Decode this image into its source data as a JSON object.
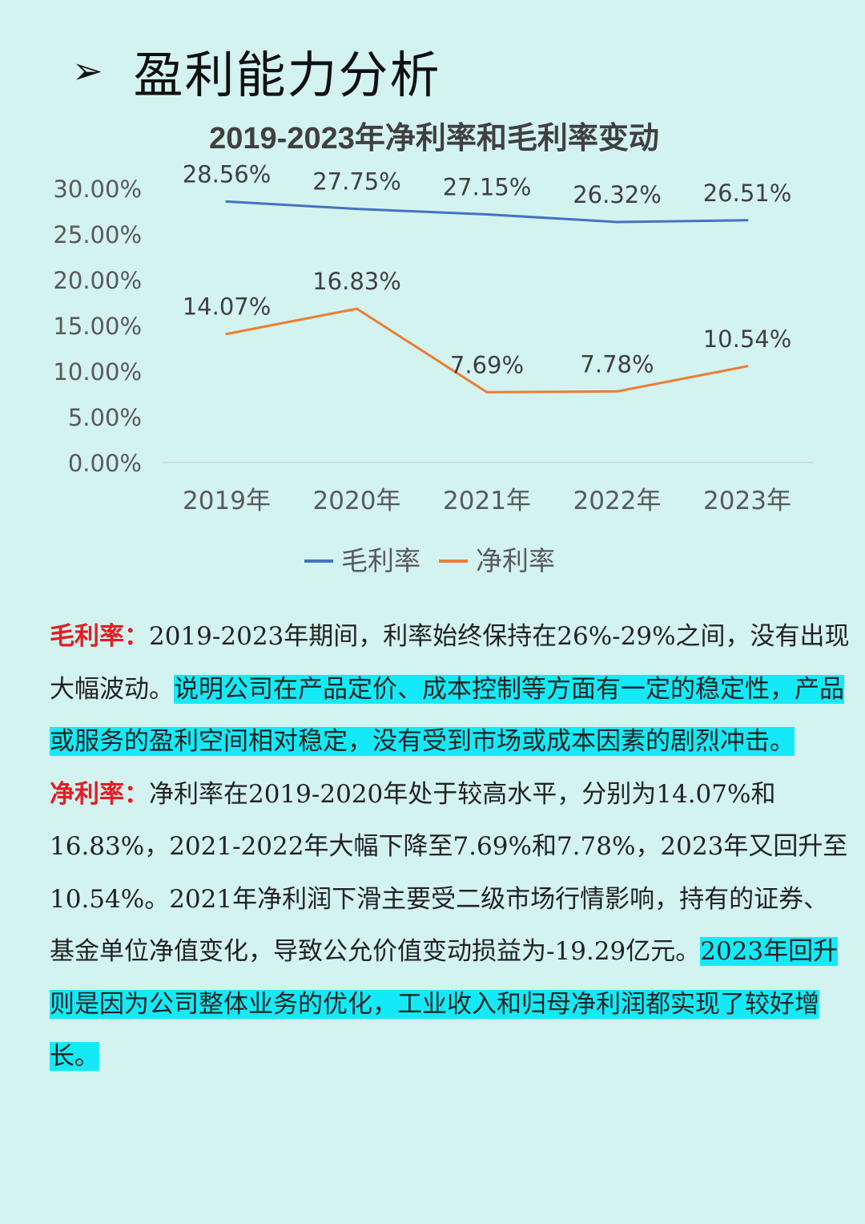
{
  "header": {
    "marker": "➢",
    "title": "盈利能力分析"
  },
  "chart_data": {
    "type": "line",
    "title": "2019-2023年净利率和毛利率变动",
    "categories": [
      "2019年",
      "2020年",
      "2021年",
      "2022年",
      "2023年"
    ],
    "yticks": [
      "0.00%",
      "5.00%",
      "10.00%",
      "15.00%",
      "20.00%",
      "25.00%",
      "30.00%"
    ],
    "ylim": [
      0,
      30
    ],
    "grid": false,
    "legend": "bottom",
    "series": [
      {
        "name": "毛利率",
        "color": "#4472c4",
        "values": [
          28.56,
          27.75,
          27.15,
          26.32,
          26.51
        ],
        "labels": [
          "28.56%",
          "27.75%",
          "27.15%",
          "26.32%",
          "26.51%"
        ]
      },
      {
        "name": "净利率",
        "color": "#ed7d31",
        "values": [
          14.07,
          16.83,
          7.69,
          7.78,
          10.54
        ],
        "labels": [
          "14.07%",
          "16.83%",
          "7.69%",
          "7.78%",
          "10.54%"
        ]
      }
    ]
  },
  "body": {
    "gross": {
      "lead": "毛利率：",
      "text": "2019-2023年期间，利率始终保持在26%-29%之间，没有出现大幅波动。",
      "highlight": "说明公司在产品定价、成本控制等方面有一定的稳定性，产品或服务的盈利空间相对稳定，没有受到市场或成本因素的剧烈冲击。"
    },
    "net": {
      "lead": "净利率：",
      "text": "净利率在2019-2020年处于较高水平，分别为14.07%和16.83%，2021-2022年大幅下降至7.69%和7.78%，2023年又回升至10.54%。2021年净利润下滑主要受二级市场行情影响，持有的证券、基金单位净值变化，导致公允价值变动损益为-19.29亿元。",
      "highlight": "2023年回升则是因为公司整体业务的优化，工业收入和归母净利润都实现了较好增长。"
    }
  }
}
